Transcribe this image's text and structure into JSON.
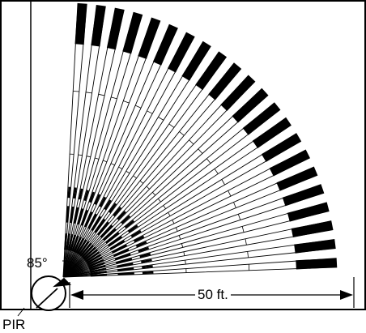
{
  "diagram": {
    "angle_label": "85°",
    "distance_label": "50 ft.",
    "sensor_label": "PIR"
  },
  "zones": [
    {
      "side": "left"
    },
    {
      "side": "right"
    },
    {
      "side": "left"
    },
    {
      "side": "right"
    },
    {
      "side": "left"
    },
    {
      "side": "right"
    },
    {
      "side": "left"
    },
    {
      "side": "right"
    },
    {
      "side": "left"
    },
    {
      "side": "right"
    },
    {
      "side": "left"
    },
    {
      "side": "right"
    },
    {
      "side": "left"
    },
    {
      "side": "right"
    },
    {
      "side": "left"
    },
    {
      "side": "right"
    },
    {
      "side": "left"
    },
    {
      "side": "right"
    },
    {
      "side": "left"
    },
    {
      "side": "right"
    },
    {
      "side": "left"
    },
    {
      "side": "right"
    }
  ],
  "colors": {
    "ink": "#000000",
    "background": "#ffffff"
  }
}
